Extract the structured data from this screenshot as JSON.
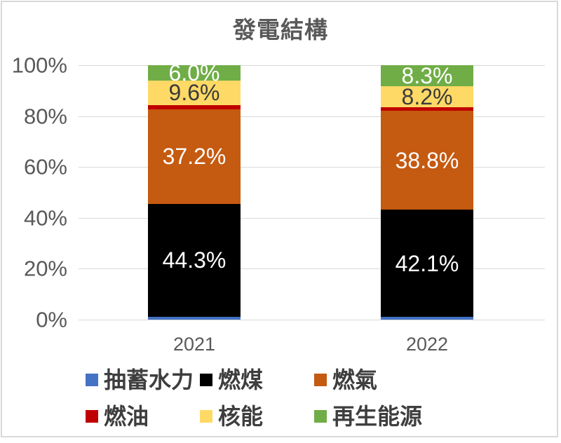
{
  "chart_data": {
    "type": "bar",
    "subtype": "stacked-100",
    "title": "發電結構",
    "categories": [
      "2021",
      "2022"
    ],
    "series": [
      {
        "name": "抽蓄水力",
        "color": "#4472C4",
        "label_color": "#FFFFFF",
        "values": [
          1.2,
          1.1
        ]
      },
      {
        "name": "燃煤",
        "color": "#000000",
        "label_color": "#FFFFFF",
        "values": [
          44.3,
          42.1
        ]
      },
      {
        "name": "燃氣",
        "color": "#C55A11",
        "label_color": "#FFFFFF",
        "values": [
          37.2,
          38.8
        ]
      },
      {
        "name": "燃油",
        "color": "#C00000",
        "label_color": "#FFFFFF",
        "values": [
          1.6,
          1.5
        ]
      },
      {
        "name": "核能",
        "color": "#FFD966",
        "label_color": "#3A3A3A",
        "values": [
          9.6,
          8.2
        ]
      },
      {
        "name": "再生能源",
        "color": "#70AD47",
        "label_color": "#FFFFFF",
        "values": [
          6.0,
          8.3
        ]
      }
    ],
    "data_labels": {
      "2021": {
        "燃煤": "44.3%",
        "燃氣": "37.2%",
        "核能": "9.6%",
        "再生能源": "6.0%"
      },
      "2022": {
        "燃煤": "42.1%",
        "燃氣": "38.8%",
        "核能": "8.2%",
        "再生能源": "8.3%"
      }
    },
    "label_min_value": 5,
    "y_ticks": [
      "0%",
      "20%",
      "40%",
      "60%",
      "80%",
      "100%"
    ],
    "ylim": [
      0,
      100
    ],
    "grid": true,
    "legend_position": "bottom",
    "colors": {
      "axis_text": "#595959",
      "legend_text": "#3E3E3E",
      "gridline": "#D9D9D9",
      "frame_border": "#D9D9D9",
      "background": "#FFFFFF"
    }
  }
}
